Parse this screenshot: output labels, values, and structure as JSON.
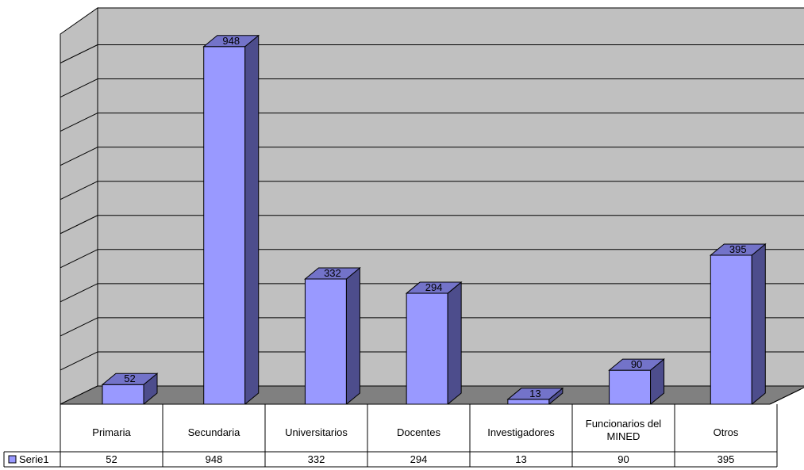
{
  "chart_data": {
    "type": "bar",
    "style": "3d-column-with-data-table",
    "categories": [
      "Primaria",
      "Secundaria",
      "Universitarios",
      "Docentes",
      "Investigadores",
      "Funcionarios del MINED",
      "Otros"
    ],
    "series": [
      {
        "name": "Serie1",
        "values": [
          52,
          948,
          332,
          294,
          13,
          90,
          395
        ]
      }
    ],
    "ylim": [
      0,
      1000
    ],
    "grid": true,
    "legend": "data-table-left",
    "colors": {
      "bar_front": "#9999ff",
      "bar_side": "#4d4d8c",
      "bar_top": "#7373c9",
      "wall": "#c0c0c0",
      "floor": "#808080"
    }
  }
}
